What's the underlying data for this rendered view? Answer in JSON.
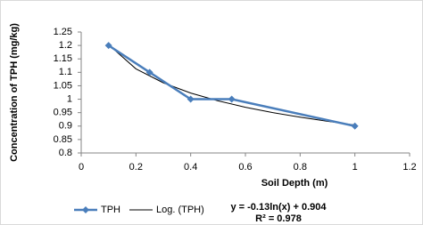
{
  "chart_data": {
    "type": "line",
    "x_label": "Soil Depth (m)",
    "y_label": "Concentration of TPH (mg/kg)",
    "series": [
      {
        "name": "TPH",
        "color": "#4a7ebb",
        "marker": "diamond",
        "x": [
          0.1,
          0.25,
          0.4,
          0.55,
          1.0
        ],
        "values": [
          1.2,
          1.1,
          1.0,
          1.0,
          0.9
        ]
      },
      {
        "name": "Log. (TPH)",
        "color": "#000000",
        "x": [
          0.1,
          0.2,
          0.3,
          0.4,
          0.5,
          0.6,
          0.7,
          0.8,
          0.9,
          1.0
        ],
        "values": [
          1.203,
          1.113,
          1.061,
          1.023,
          0.994,
          0.97,
          0.95,
          0.933,
          0.918,
          0.904
        ]
      }
    ],
    "annotations": [
      "y = -0.13ln(x) + 0.904",
      "R² = 0.978"
    ],
    "xlim": [
      0,
      1.2
    ],
    "xticks": [
      0,
      0.2,
      0.4,
      0.6,
      0.8,
      1,
      1.2
    ],
    "ylim": [
      0.8,
      1.25
    ],
    "yticks": [
      0.8,
      0.85,
      0.9,
      0.95,
      1,
      1.05,
      1.1,
      1.15,
      1.2,
      1.25
    ],
    "grid": false,
    "legend": "bottom"
  }
}
